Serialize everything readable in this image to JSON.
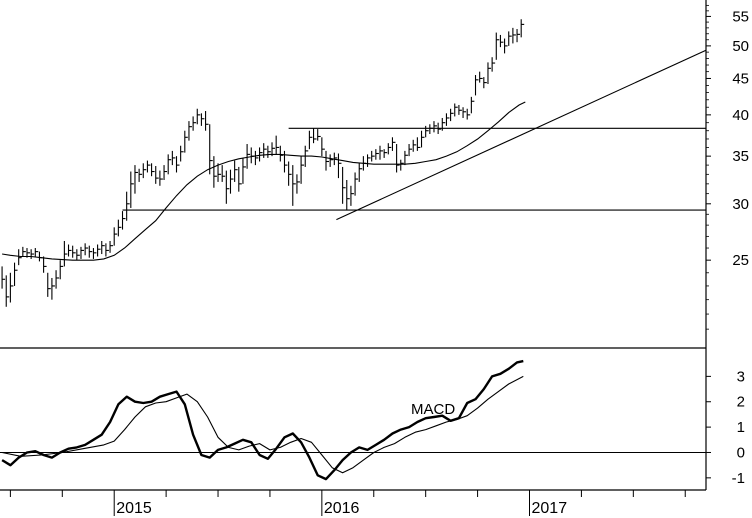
{
  "chart_data": [
    {
      "type": "ohlc",
      "scale": "log",
      "ylim": [
        19,
        58
      ],
      "yticks": [
        25,
        30,
        35,
        40,
        45,
        50,
        55
      ],
      "xlim": [
        2014.45,
        2017.85
      ],
      "moving_average_name": "",
      "price_bars": [
        [
          2014.46,
          24.5,
          22.8,
          23.5
        ],
        [
          2014.48,
          23.8,
          21.5,
          22.2
        ],
        [
          2014.5,
          24.0,
          21.8,
          23.0
        ],
        [
          2014.52,
          24.8,
          23.0,
          24.2
        ],
        [
          2014.54,
          25.9,
          24.6,
          25.2
        ],
        [
          2014.56,
          26.1,
          25.3,
          25.7
        ],
        [
          2014.58,
          26.0,
          25.2,
          25.6
        ],
        [
          2014.6,
          25.9,
          25.1,
          25.5
        ],
        [
          2014.62,
          26.0,
          25.3,
          25.7
        ],
        [
          2014.64,
          25.7,
          24.9,
          25.2
        ],
        [
          2014.66,
          25.3,
          24.0,
          24.5
        ],
        [
          2014.68,
          24.0,
          22.2,
          22.8
        ],
        [
          2014.7,
          23.6,
          22.0,
          23.0
        ],
        [
          2014.72,
          24.2,
          22.8,
          23.6
        ],
        [
          2014.74,
          25.0,
          23.5,
          24.5
        ],
        [
          2014.76,
          26.6,
          24.5,
          25.5
        ],
        [
          2014.78,
          26.3,
          25.3,
          25.8
        ],
        [
          2014.8,
          26.2,
          25.2,
          25.6
        ],
        [
          2014.82,
          25.9,
          25.0,
          25.4
        ],
        [
          2014.84,
          26.1,
          25.1,
          25.8
        ],
        [
          2014.86,
          26.4,
          25.4,
          26.0
        ],
        [
          2014.88,
          26.2,
          25.2,
          25.7
        ],
        [
          2014.9,
          26.0,
          25.1,
          25.6
        ],
        [
          2014.92,
          26.3,
          25.3,
          25.9
        ],
        [
          2014.94,
          26.6,
          25.5,
          26.2
        ],
        [
          2014.96,
          26.4,
          25.3,
          25.8
        ],
        [
          2014.98,
          26.6,
          25.6,
          26.2
        ],
        [
          2015.0,
          27.8,
          26.2,
          27.2
        ],
        [
          2015.02,
          28.5,
          27.0,
          27.8
        ],
        [
          2015.04,
          29.3,
          27.6,
          28.6
        ],
        [
          2015.06,
          31.2,
          28.4,
          30.0
        ],
        [
          2015.08,
          33.3,
          29.6,
          32.0
        ],
        [
          2015.1,
          34.0,
          31.0,
          33.2
        ],
        [
          2015.12,
          33.6,
          32.2,
          33.0
        ],
        [
          2015.14,
          34.2,
          32.6,
          33.5
        ],
        [
          2015.16,
          34.5,
          33.2,
          34.0
        ],
        [
          2015.18,
          34.2,
          32.8,
          33.3
        ],
        [
          2015.2,
          33.9,
          32.0,
          32.6
        ],
        [
          2015.22,
          33.4,
          31.8,
          32.5
        ],
        [
          2015.24,
          34.0,
          32.4,
          33.3
        ],
        [
          2015.26,
          35.2,
          33.0,
          34.6
        ],
        [
          2015.28,
          35.6,
          34.0,
          34.8
        ],
        [
          2015.3,
          35.0,
          33.2,
          34.0
        ],
        [
          2015.32,
          36.2,
          34.4,
          35.5
        ],
        [
          2015.34,
          38.0,
          35.4,
          37.2
        ],
        [
          2015.36,
          39.2,
          36.8,
          38.5
        ],
        [
          2015.38,
          39.8,
          38.0,
          39.0
        ],
        [
          2015.4,
          40.8,
          38.8,
          40.0
        ],
        [
          2015.42,
          40.2,
          38.6,
          39.5
        ],
        [
          2015.44,
          40.5,
          38.0,
          38.8
        ],
        [
          2015.46,
          38.8,
          33.0,
          34.5
        ],
        [
          2015.48,
          35.0,
          31.6,
          32.8
        ],
        [
          2015.5,
          34.2,
          32.2,
          33.0
        ],
        [
          2015.52,
          34.0,
          32.2,
          32.8
        ],
        [
          2015.54,
          33.4,
          30.0,
          31.5
        ],
        [
          2015.56,
          33.5,
          31.0,
          32.5
        ],
        [
          2015.58,
          34.5,
          32.2,
          33.5
        ],
        [
          2015.6,
          33.8,
          31.2,
          32.0
        ],
        [
          2015.62,
          34.8,
          32.0,
          33.8
        ],
        [
          2015.64,
          36.4,
          33.6,
          35.2
        ],
        [
          2015.66,
          36.0,
          34.2,
          35.0
        ],
        [
          2015.68,
          35.6,
          34.0,
          34.8
        ],
        [
          2015.7,
          36.0,
          34.4,
          35.4
        ],
        [
          2015.72,
          36.5,
          34.8,
          35.8
        ],
        [
          2015.74,
          36.2,
          34.8,
          35.5
        ],
        [
          2015.76,
          36.6,
          35.0,
          35.9
        ],
        [
          2015.78,
          37.4,
          35.2,
          36.0
        ],
        [
          2015.8,
          36.2,
          34.4,
          35.1
        ],
        [
          2015.82,
          35.6,
          33.2,
          34.0
        ],
        [
          2015.84,
          34.4,
          31.8,
          33.0
        ],
        [
          2015.86,
          34.0,
          29.8,
          32.0
        ],
        [
          2015.88,
          33.0,
          31.0,
          32.2
        ],
        [
          2015.9,
          35.0,
          32.0,
          34.0
        ],
        [
          2015.92,
          36.2,
          33.8,
          35.6
        ],
        [
          2015.94,
          38.0,
          35.8,
          37.2
        ],
        [
          2015.96,
          38.3,
          36.5,
          37.0
        ],
        [
          2015.98,
          38.2,
          36.8,
          37.3
        ],
        [
          2016.0,
          37.2,
          35.0,
          35.8
        ],
        [
          2016.02,
          35.6,
          33.4,
          34.4
        ],
        [
          2016.04,
          35.2,
          33.8,
          34.6
        ],
        [
          2016.06,
          35.4,
          34.0,
          34.8
        ],
        [
          2016.08,
          35.3,
          32.6,
          34.2
        ],
        [
          2016.1,
          33.8,
          30.0,
          31.6
        ],
        [
          2016.12,
          32.4,
          29.4,
          30.5
        ],
        [
          2016.14,
          31.8,
          29.8,
          31.0
        ],
        [
          2016.16,
          33.2,
          30.8,
          32.5
        ],
        [
          2016.18,
          34.2,
          32.2,
          33.6
        ],
        [
          2016.2,
          35.0,
          33.4,
          34.2
        ],
        [
          2016.22,
          35.2,
          33.8,
          34.8
        ],
        [
          2016.24,
          35.6,
          34.4,
          35.0
        ],
        [
          2016.26,
          35.8,
          34.6,
          35.3
        ],
        [
          2016.28,
          36.2,
          34.6,
          35.6
        ],
        [
          2016.3,
          35.8,
          34.8,
          35.4
        ],
        [
          2016.32,
          36.5,
          35.2,
          36.0
        ],
        [
          2016.34,
          37.2,
          35.6,
          36.6
        ],
        [
          2016.36,
          36.4,
          33.2,
          34.0
        ],
        [
          2016.38,
          34.6,
          33.4,
          34.2
        ],
        [
          2016.4,
          35.6,
          34.0,
          35.1
        ],
        [
          2016.42,
          36.4,
          35.0,
          35.8
        ],
        [
          2016.44,
          36.9,
          35.5,
          36.3
        ],
        [
          2016.46,
          37.2,
          35.6,
          36.0
        ],
        [
          2016.48,
          38.0,
          36.0,
          37.2
        ],
        [
          2016.5,
          38.6,
          37.2,
          38.0
        ],
        [
          2016.52,
          38.8,
          37.6,
          38.3
        ],
        [
          2016.54,
          39.2,
          37.8,
          38.6
        ],
        [
          2016.56,
          39.0,
          37.6,
          38.2
        ],
        [
          2016.58,
          39.6,
          38.0,
          39.0
        ],
        [
          2016.6,
          40.2,
          38.6,
          39.6
        ],
        [
          2016.62,
          40.8,
          39.2,
          40.2
        ],
        [
          2016.64,
          41.5,
          39.8,
          41.0
        ],
        [
          2016.66,
          41.3,
          40.0,
          40.6
        ],
        [
          2016.68,
          41.0,
          39.6,
          40.4
        ],
        [
          2016.7,
          40.8,
          39.4,
          40.0
        ],
        [
          2016.72,
          42.4,
          40.2,
          41.8
        ],
        [
          2016.74,
          45.5,
          42.6,
          44.8
        ],
        [
          2016.76,
          46.0,
          44.4,
          45.0
        ],
        [
          2016.78,
          45.2,
          43.6,
          44.4
        ],
        [
          2016.8,
          47.4,
          44.2,
          46.5
        ],
        [
          2016.82,
          48.2,
          46.0,
          47.3
        ],
        [
          2016.84,
          52.2,
          47.8,
          51.0
        ],
        [
          2016.86,
          51.8,
          49.8,
          50.6
        ],
        [
          2016.88,
          51.2,
          48.8,
          50.0
        ],
        [
          2016.9,
          52.4,
          50.0,
          51.6
        ],
        [
          2016.92,
          53.0,
          50.4,
          51.8
        ],
        [
          2016.94,
          52.8,
          50.6,
          51.9
        ],
        [
          2016.96,
          54.5,
          51.4,
          53.6
        ]
      ],
      "moving_average": [
        [
          2014.46,
          25.5
        ],
        [
          2014.5,
          25.4
        ],
        [
          2014.55,
          25.3
        ],
        [
          2014.6,
          25.3
        ],
        [
          2014.65,
          25.2
        ],
        [
          2014.7,
          25.1
        ],
        [
          2014.8,
          25.0
        ],
        [
          2014.9,
          25.0
        ],
        [
          2014.95,
          25.1
        ],
        [
          2015.0,
          25.4
        ],
        [
          2015.05,
          26.0
        ],
        [
          2015.1,
          26.8
        ],
        [
          2015.15,
          27.6
        ],
        [
          2015.2,
          28.4
        ],
        [
          2015.25,
          29.6
        ],
        [
          2015.3,
          30.8
        ],
        [
          2015.35,
          31.9
        ],
        [
          2015.4,
          32.8
        ],
        [
          2015.45,
          33.5
        ],
        [
          2015.5,
          34.0
        ],
        [
          2015.55,
          34.4
        ],
        [
          2015.6,
          34.7
        ],
        [
          2015.65,
          34.9
        ],
        [
          2015.7,
          35.1
        ],
        [
          2015.75,
          35.2
        ],
        [
          2015.8,
          35.2
        ],
        [
          2015.85,
          35.1
        ],
        [
          2015.9,
          35.0
        ],
        [
          2015.95,
          35.0
        ],
        [
          2016.0,
          34.9
        ],
        [
          2016.05,
          34.7
        ],
        [
          2016.1,
          34.5
        ],
        [
          2016.15,
          34.3
        ],
        [
          2016.2,
          34.2
        ],
        [
          2016.25,
          34.1
        ],
        [
          2016.3,
          34.1
        ],
        [
          2016.35,
          34.1
        ],
        [
          2016.4,
          34.1
        ],
        [
          2016.45,
          34.2
        ],
        [
          2016.5,
          34.4
        ],
        [
          2016.55,
          34.6
        ],
        [
          2016.6,
          35.0
        ],
        [
          2016.65,
          35.5
        ],
        [
          2016.7,
          36.2
        ],
        [
          2016.75,
          37.0
        ],
        [
          2016.8,
          38.0
        ],
        [
          2016.85,
          39.1
        ],
        [
          2016.9,
          40.3
        ],
        [
          2016.95,
          41.3
        ],
        [
          2016.98,
          41.7
        ]
      ],
      "horizontal_lines": [
        {
          "y": 29.4,
          "x_range": [
            2015.04,
            2017.85
          ]
        },
        {
          "y": 38.3,
          "x_range": [
            2015.84,
            2017.85
          ]
        }
      ],
      "trendline": {
        "x1": 2016.07,
        "y1": 28.5,
        "x2": 2017.85,
        "y2": 49.3
      }
    },
    {
      "type": "line",
      "annotation": "MACD",
      "ylim": [
        -1.4,
        4.0
      ],
      "yticks": [
        -1,
        0,
        1,
        2,
        3
      ],
      "xlim": [
        2014.45,
        2017.85
      ],
      "zero_line": 0,
      "series": [
        {
          "x": [
            2014.46,
            2014.5,
            2014.54,
            2014.58,
            2014.62,
            2014.66,
            2014.7,
            2014.74,
            2014.78,
            2014.82,
            2014.86,
            2014.9,
            2014.94,
            2014.98,
            2015.02,
            2015.06,
            2015.1,
            2015.14,
            2015.18,
            2015.22,
            2015.26,
            2015.3,
            2015.34,
            2015.38,
            2015.42,
            2015.46,
            2015.5,
            2015.54,
            2015.58,
            2015.62,
            2015.66,
            2015.7,
            2015.74,
            2015.78,
            2015.82,
            2015.86,
            2015.9,
            2015.94,
            2015.98,
            2016.02,
            2016.06,
            2016.1,
            2016.14,
            2016.18,
            2016.22,
            2016.26,
            2016.3,
            2016.34,
            2016.38,
            2016.42,
            2016.46,
            2016.5,
            2016.54,
            2016.58,
            2016.62,
            2016.66,
            2016.7,
            2016.74,
            2016.78,
            2016.82,
            2016.86,
            2016.9,
            2016.94,
            2016.97
          ],
          "values": [
            -0.3,
            -0.5,
            -0.2,
            0.0,
            0.05,
            -0.1,
            -0.2,
            0.0,
            0.15,
            0.2,
            0.3,
            0.5,
            0.7,
            1.2,
            1.9,
            2.2,
            2.0,
            1.95,
            2.0,
            2.2,
            2.3,
            2.4,
            1.9,
            0.7,
            -0.1,
            -0.2,
            0.1,
            0.2,
            0.35,
            0.5,
            0.4,
            -0.1,
            -0.25,
            0.15,
            0.6,
            0.75,
            0.4,
            -0.2,
            -0.9,
            -1.05,
            -0.7,
            -0.3,
            0.0,
            0.2,
            0.1,
            0.3,
            0.5,
            0.75,
            0.9,
            1.0,
            1.2,
            1.35,
            1.4,
            1.45,
            1.25,
            1.35,
            1.95,
            2.1,
            2.5,
            3.0,
            3.1,
            3.3,
            3.55,
            3.6
          ]
        },
        {
          "x": [
            2014.46,
            2014.55,
            2014.65,
            2014.75,
            2014.85,
            2014.95,
            2015.0,
            2015.05,
            2015.1,
            2015.15,
            2015.2,
            2015.25,
            2015.3,
            2015.35,
            2015.4,
            2015.45,
            2015.5,
            2015.55,
            2015.6,
            2015.65,
            2015.7,
            2015.75,
            2015.8,
            2015.85,
            2015.9,
            2015.95,
            2016.0,
            2016.05,
            2016.1,
            2016.15,
            2016.2,
            2016.25,
            2016.3,
            2016.35,
            2016.4,
            2016.45,
            2016.5,
            2016.55,
            2016.6,
            2016.65,
            2016.7,
            2016.75,
            2016.8,
            2016.85,
            2016.9,
            2016.97
          ],
          "values": [
            0.0,
            -0.15,
            -0.1,
            0.0,
            0.15,
            0.3,
            0.45,
            0.9,
            1.4,
            1.8,
            1.95,
            2.0,
            2.15,
            2.3,
            2.0,
            1.4,
            0.6,
            0.2,
            0.1,
            0.25,
            0.35,
            0.1,
            0.2,
            0.4,
            0.55,
            0.4,
            -0.1,
            -0.6,
            -0.8,
            -0.6,
            -0.3,
            0.0,
            0.2,
            0.35,
            0.6,
            0.8,
            0.9,
            1.05,
            1.2,
            1.3,
            1.45,
            1.75,
            2.1,
            2.4,
            2.7,
            3.0
          ]
        }
      ]
    }
  ],
  "time_axis": {
    "year_labels": [
      "2015",
      "2016",
      "2017"
    ],
    "year_positions": [
      2015.0,
      2016.0,
      2017.0
    ]
  }
}
